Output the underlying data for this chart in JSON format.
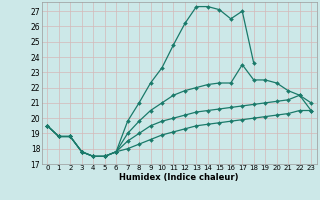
{
  "xlabel": "Humidex (Indice chaleur)",
  "bg_color": "#cce8e8",
  "grid_color": "#b8d4d4",
  "line_color": "#1a7a6a",
  "xlim": [
    -0.5,
    23.5
  ],
  "ylim": [
    17,
    27.6
  ],
  "yticks": [
    17,
    18,
    19,
    20,
    21,
    22,
    23,
    24,
    25,
    26,
    27
  ],
  "xticks": [
    0,
    1,
    2,
    3,
    4,
    5,
    6,
    7,
    8,
    9,
    10,
    11,
    12,
    13,
    14,
    15,
    16,
    17,
    18,
    19,
    20,
    21,
    22,
    23
  ],
  "lines": [
    {
      "x": [
        0,
        1,
        2,
        3,
        4,
        5,
        6,
        7,
        8,
        9,
        10,
        11,
        12,
        13,
        14,
        15,
        16,
        17,
        18
      ],
      "y": [
        19.5,
        18.8,
        18.8,
        17.8,
        17.5,
        17.5,
        17.8,
        19.8,
        21.0,
        22.3,
        23.3,
        24.8,
        26.2,
        27.3,
        27.3,
        27.1,
        26.5,
        27.0,
        23.6
      ]
    },
    {
      "x": [
        0,
        1,
        2,
        3,
        4,
        5,
        6,
        7,
        8,
        9,
        10,
        11,
        12,
        13,
        14,
        15,
        16,
        17,
        18,
        19,
        20,
        21,
        22,
        23
      ],
      "y": [
        19.5,
        18.8,
        18.8,
        17.8,
        17.5,
        17.5,
        17.8,
        19.0,
        19.8,
        20.5,
        21.0,
        21.5,
        21.8,
        22.0,
        22.2,
        22.3,
        22.3,
        23.5,
        22.5,
        22.5,
        22.3,
        21.8,
        21.5,
        20.5
      ]
    },
    {
      "x": [
        0,
        1,
        2,
        3,
        4,
        5,
        6,
        7,
        8,
        9,
        10,
        11,
        12,
        13,
        14,
        15,
        16,
        17,
        18,
        19,
        20,
        21,
        22,
        23
      ],
      "y": [
        19.5,
        18.8,
        18.8,
        17.8,
        17.5,
        17.5,
        17.8,
        18.5,
        19.0,
        19.5,
        19.8,
        20.0,
        20.2,
        20.4,
        20.5,
        20.6,
        20.7,
        20.8,
        20.9,
        21.0,
        21.1,
        21.2,
        21.5,
        21.0
      ]
    },
    {
      "x": [
        0,
        1,
        2,
        3,
        4,
        5,
        6,
        7,
        8,
        9,
        10,
        11,
        12,
        13,
        14,
        15,
        16,
        17,
        18,
        19,
        20,
        21,
        22,
        23
      ],
      "y": [
        19.5,
        18.8,
        18.8,
        17.8,
        17.5,
        17.5,
        17.8,
        18.0,
        18.3,
        18.6,
        18.9,
        19.1,
        19.3,
        19.5,
        19.6,
        19.7,
        19.8,
        19.9,
        20.0,
        20.1,
        20.2,
        20.3,
        20.5,
        20.5
      ]
    }
  ]
}
